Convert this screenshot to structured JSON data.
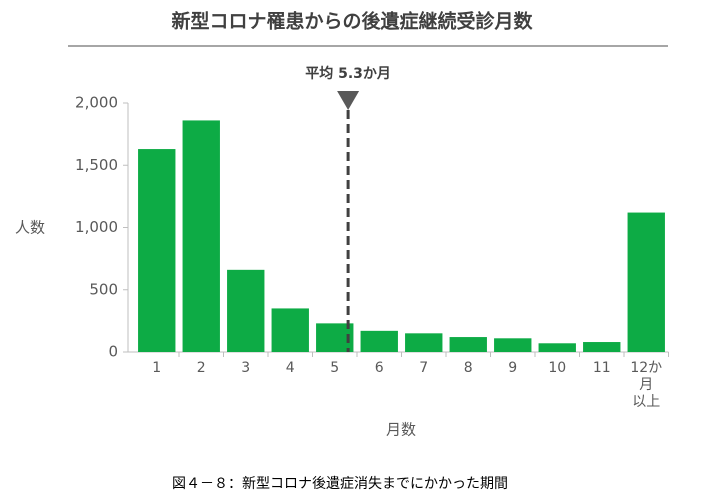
{
  "chart_data": {
    "type": "bar",
    "title": "新型コロナ罹患からの後遺症継続受診月数",
    "x_label": "月数",
    "y_label": "人数",
    "categories": [
      "1",
      "2",
      "3",
      "4",
      "5",
      "6",
      "7",
      "8",
      "9",
      "10",
      "11",
      "12か月\n以上"
    ],
    "values": [
      1630,
      1860,
      660,
      350,
      230,
      170,
      150,
      120,
      110,
      70,
      80,
      1120
    ],
    "color": "#0dab45",
    "ylim": [
      0,
      2000
    ],
    "yticks": [
      0,
      500,
      {
        "value": 1000,
        "label": "1,000"
      },
      {
        "value": 1500,
        "label": "1,500"
      },
      {
        "value": 2000,
        "label": "2,000"
      }
    ],
    "grid": false,
    "mean_line": {
      "value": 5.3,
      "label": "平均 5.3か月",
      "color": "#404040"
    }
  },
  "caption": "図４－８：新型コロナ後遺症消失までにかかった期間"
}
